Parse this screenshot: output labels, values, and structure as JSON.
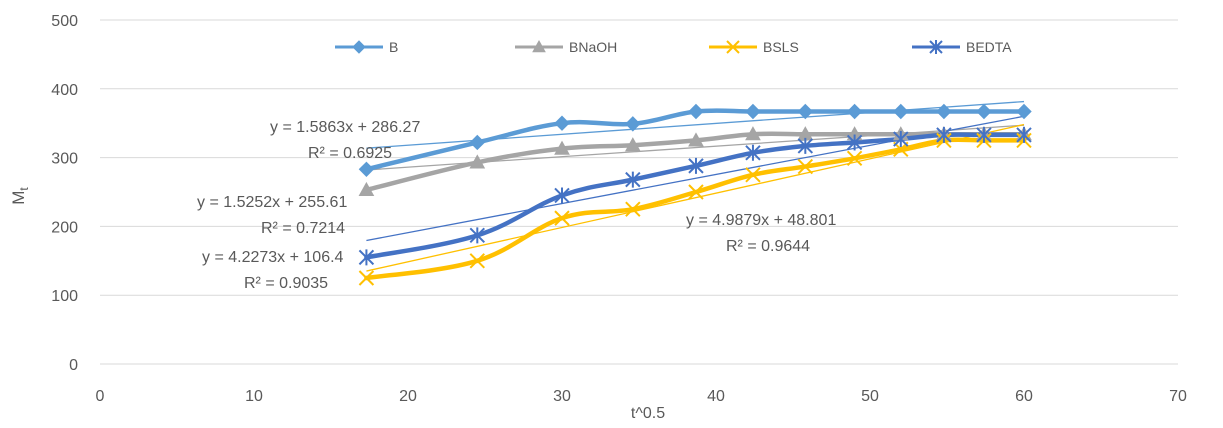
{
  "chart_data": {
    "type": "line",
    "title": "",
    "xlabel": "t^0.5",
    "ylabel": "M",
    "ylabel_subscript": "t",
    "xlim": [
      0,
      70
    ],
    "ylim": [
      0,
      500
    ],
    "xticks": [
      0,
      10,
      20,
      30,
      40,
      50,
      60,
      70
    ],
    "yticks": [
      0,
      100,
      200,
      300,
      400,
      500
    ],
    "grid": "horizontal",
    "legend_position": "top",
    "x": [
      17.3,
      24.5,
      30,
      34.6,
      38.7,
      42.4,
      45.8,
      49,
      52,
      54.8,
      57.4,
      60
    ],
    "series": [
      {
        "name": "B",
        "color": "#5B9BD5",
        "marker": "diamond",
        "values": [
          283,
          322,
          350,
          349,
          367,
          367,
          367,
          367,
          367,
          367,
          367,
          367
        ]
      },
      {
        "name": "BNaOH",
        "color": "#A5A5A5",
        "marker": "triangle",
        "values": [
          253,
          293,
          313,
          318,
          325,
          334,
          334,
          334,
          334,
          334,
          334,
          334
        ]
      },
      {
        "name": "BSLS",
        "color": "#FFC000",
        "marker": "x",
        "values": [
          125,
          150,
          212,
          225,
          250,
          275,
          287,
          299,
          312,
          325,
          325,
          325
        ]
      },
      {
        "name": "BEDTA",
        "color": "#4472C4",
        "marker": "star",
        "values": [
          155,
          187,
          245,
          268,
          288,
          307,
          317,
          322,
          327,
          333,
          333,
          333
        ]
      }
    ],
    "trendlines": [
      {
        "series": "B",
        "slope": 1.5863,
        "intercept": 286.27
      },
      {
        "series": "BNaOH",
        "slope": 1.5252,
        "intercept": 255.61
      },
      {
        "series": "BSLS",
        "slope": 4.9879,
        "intercept": 48.801
      },
      {
        "series": "BEDTA",
        "slope": 4.2273,
        "intercept": 106.4
      }
    ],
    "annotations": [
      {
        "eq": "y = 1.5863x + 286.27",
        "r2": "R² = 0.6925"
      },
      {
        "eq": "y = 1.5252x + 255.61",
        "r2": "R² = 0.7214"
      },
      {
        "eq": "y = 4.2273x + 106.4",
        "r2": "R² = 0.9035"
      },
      {
        "eq": "y = 4.9879x + 48.801",
        "r2": "R² = 0.9644"
      }
    ]
  }
}
